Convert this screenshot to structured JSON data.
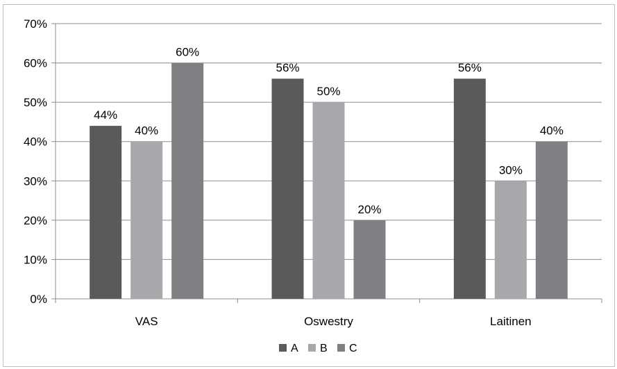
{
  "chart_data": {
    "type": "bar",
    "categories": [
      "VAS",
      "Oswestry",
      "Laitinen"
    ],
    "series": [
      {
        "name": "A",
        "values": [
          44,
          56,
          56
        ],
        "labels": [
          "44%",
          "56%",
          "56%"
        ],
        "color": "#595a5c"
      },
      {
        "name": "B",
        "values": [
          40,
          50,
          30
        ],
        "labels": [
          "40%",
          "50%",
          "30%"
        ],
        "color": "#a6a8ab"
      },
      {
        "name": "C",
        "values": [
          60,
          20,
          40
        ],
        "labels": [
          "60%",
          "20%",
          "40%"
        ],
        "color": "#7f8083"
      }
    ],
    "y_ticks": [
      "0%",
      "10%",
      "20%",
      "30%",
      "40%",
      "50%",
      "60%",
      "70%"
    ],
    "ylim": [
      0,
      70
    ],
    "grid": true,
    "legend_position": "bottom"
  }
}
